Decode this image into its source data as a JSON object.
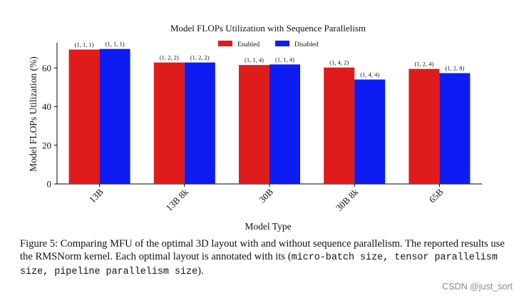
{
  "chart_data": {
    "type": "bar",
    "title": "Model FLOPs Utilization with Sequence Parallelism",
    "xlabel": "Model Type",
    "ylabel": "Model FLOPs Utilization (%)",
    "ylim": [
      0,
      73
    ],
    "yticks": [
      "0",
      "20",
      "40",
      "60"
    ],
    "categories": [
      "13B",
      "13B 8k",
      "30B",
      "30B 8k",
      "65B"
    ],
    "legend_position": "top-center",
    "grid": false,
    "series": [
      {
        "name": "Enabled",
        "color": "#e01b1b",
        "values": [
          69.5,
          62.8,
          61.5,
          60.2,
          59.5
        ],
        "annotations": [
          "(1, 1, 1)",
          "(1, 2, 2)",
          "(1, 1, 4)",
          "(1, 4, 2)",
          "(1, 2, 4)"
        ]
      },
      {
        "name": "Disabled",
        "color": "#0d1cf2",
        "values": [
          69.8,
          62.8,
          61.8,
          54.0,
          57.3
        ],
        "annotations": [
          "(1, 1, 1)",
          "(1, 2, 2)",
          "(1, 1, 4)",
          "(1, 4, 4)",
          "(1, 2, 8)"
        ]
      }
    ]
  },
  "caption": {
    "label": "Figure 5:",
    "text": " Comparing MFU of the optimal 3D layout with and without sequence parallelism. The reported results use the RMSNorm kernel. Each optimal layout is annotated with its (",
    "mono": "micro-batch size, tensor parallelism size, pipeline parallelism size",
    "end": ")."
  },
  "watermark": "CSDN @just_sort"
}
